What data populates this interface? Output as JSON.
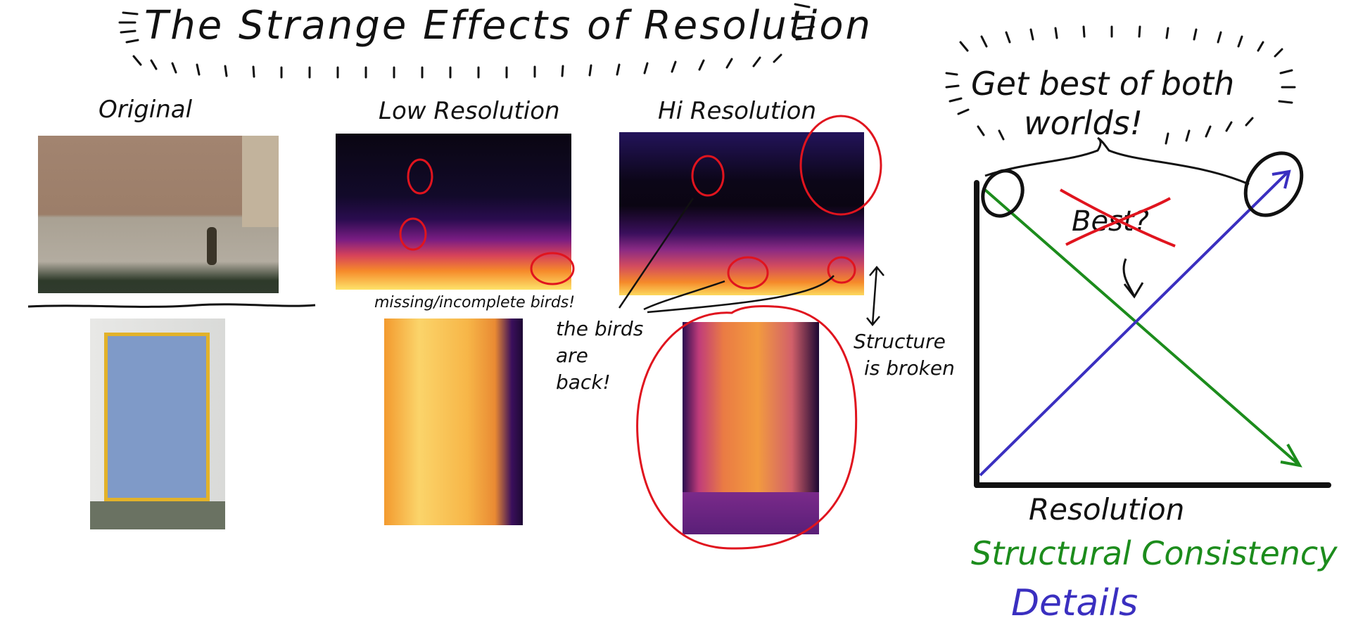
{
  "title": "The Strange Effects of Resolution",
  "columns": {
    "original": "Original",
    "low_res": "Low Resolution",
    "hi_res": "Hi Resolution"
  },
  "notes": {
    "missing_birds": "missing/incomplete birds!",
    "birds_back_1": "the birds",
    "birds_back_2": "are",
    "birds_back_3": "back!",
    "structure_1": "Structure",
    "structure_2": "is broken"
  },
  "graph": {
    "header_1": "Get best of both",
    "header_2": "worlds!",
    "crossed_label": "Best?",
    "xlabel": "Resolution",
    "legend_green": "Structural Consistency",
    "legend_blue": "Details"
  },
  "colors": {
    "red": "#e0141e",
    "green": "#1c8c1c",
    "blue": "#3a2fc0",
    "ink": "#111111"
  }
}
